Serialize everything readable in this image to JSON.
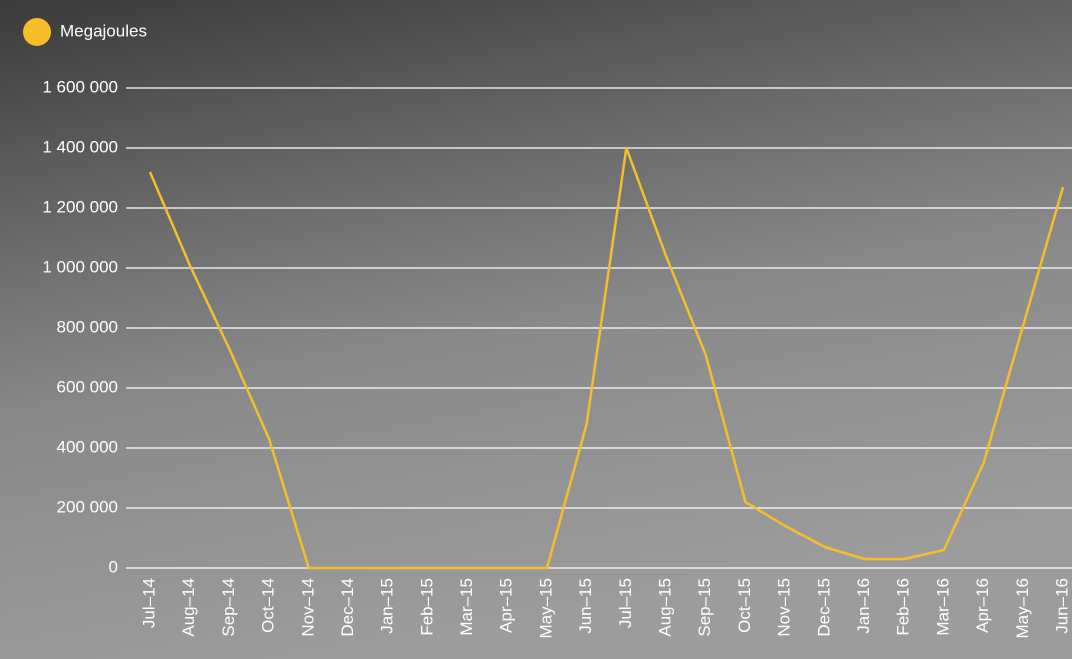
{
  "chart_data": {
    "type": "line",
    "categories": [
      "Jul–14",
      "Aug–14",
      "Sep–14",
      "Oct–14",
      "Nov–14",
      "Dec–14",
      "Jan–15",
      "Feb–15",
      "Mar–15",
      "Apr–15",
      "May–15",
      "Jun–15",
      "Jul–15",
      "Aug–15",
      "Sep–15",
      "Oct–15",
      "Nov–15",
      "Dec–15",
      "Jan–16",
      "Feb–16",
      "Mar–16",
      "Apr–16",
      "May–16",
      "Jun–16"
    ],
    "series": [
      {
        "name": "Megajoules",
        "color": "#f7bd2c",
        "values": [
          1320000,
          1010000,
          730000,
          430000,
          0,
          0,
          0,
          0,
          0,
          0,
          0,
          480000,
          1400000,
          1040000,
          710000,
          220000,
          140000,
          70000,
          30000,
          30000,
          60000,
          350000,
          810000,
          1270000
        ]
      }
    ],
    "ylim": [
      0,
      1600000
    ],
    "yticks": [
      0,
      {
        "value": 200000,
        "label": "200 000"
      },
      {
        "value": 400000,
        "label": "400 000"
      },
      {
        "value": 600000,
        "label": "600 000"
      },
      {
        "value": 800000,
        "label": "800 000"
      },
      {
        "value": 1000000,
        "label": "1 000 000"
      },
      {
        "value": 1200000,
        "label": "1 200 000"
      },
      {
        "value": 1400000,
        "label": "1 400 000"
      },
      {
        "value": 1600000,
        "label": "1 600 000"
      }
    ],
    "grid": true
  }
}
